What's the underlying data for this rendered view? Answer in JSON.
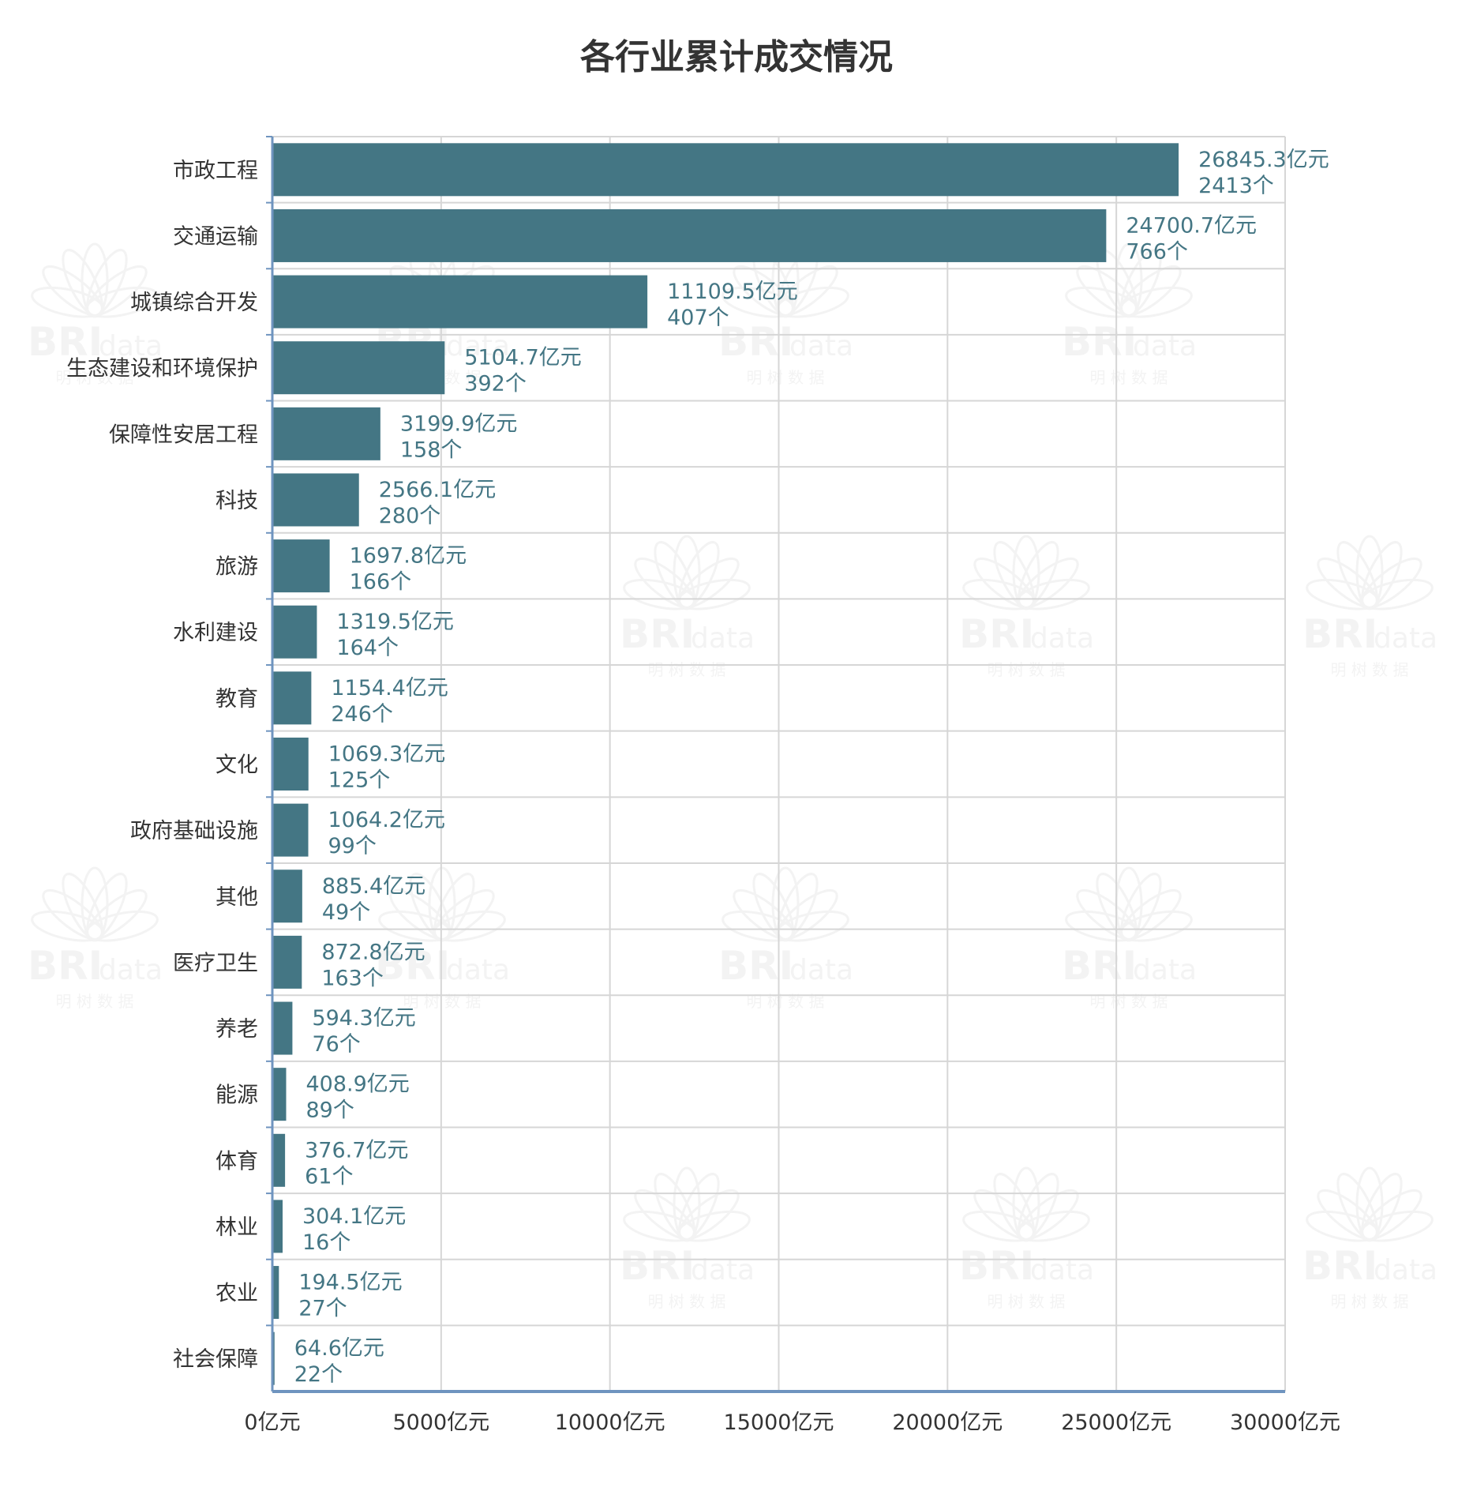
{
  "chart_data": {
    "type": "bar",
    "orientation": "horizontal",
    "title": "各行业累计成交情况",
    "categories": [
      "市政工程",
      "交通运输",
      "城镇综合开发",
      "生态建设和环境保护",
      "保障性安居工程",
      "科技",
      "旅游",
      "水利建设",
      "教育",
      "文化",
      "政府基础设施",
      "其他",
      "医疗卫生",
      "养老",
      "能源",
      "体育",
      "林业",
      "农业",
      "社会保障"
    ],
    "values": [
      26845.3,
      24700.7,
      11109.5,
      5104.7,
      3199.9,
      2566.1,
      1697.8,
      1319.5,
      1154.4,
      1069.3,
      1064.2,
      885.4,
      872.8,
      594.3,
      408.9,
      376.7,
      304.1,
      194.5,
      64.6
    ],
    "counts": [
      2413,
      766,
      407,
      392,
      158,
      280,
      166,
      164,
      246,
      125,
      99,
      49,
      163,
      76,
      89,
      61,
      16,
      27,
      22
    ],
    "value_unit": "亿元",
    "count_unit": "个",
    "xlim": [
      0,
      30000
    ],
    "xticks": [
      0,
      5000,
      10000,
      15000,
      20000,
      25000,
      30000
    ],
    "grid": true,
    "bar_color": "#447684",
    "label_color": "#447684",
    "axis_color": "#6f94bf"
  },
  "watermark": {
    "brand": "BRI",
    "suffix": "data",
    "tagline": "明 树 数 据"
  }
}
